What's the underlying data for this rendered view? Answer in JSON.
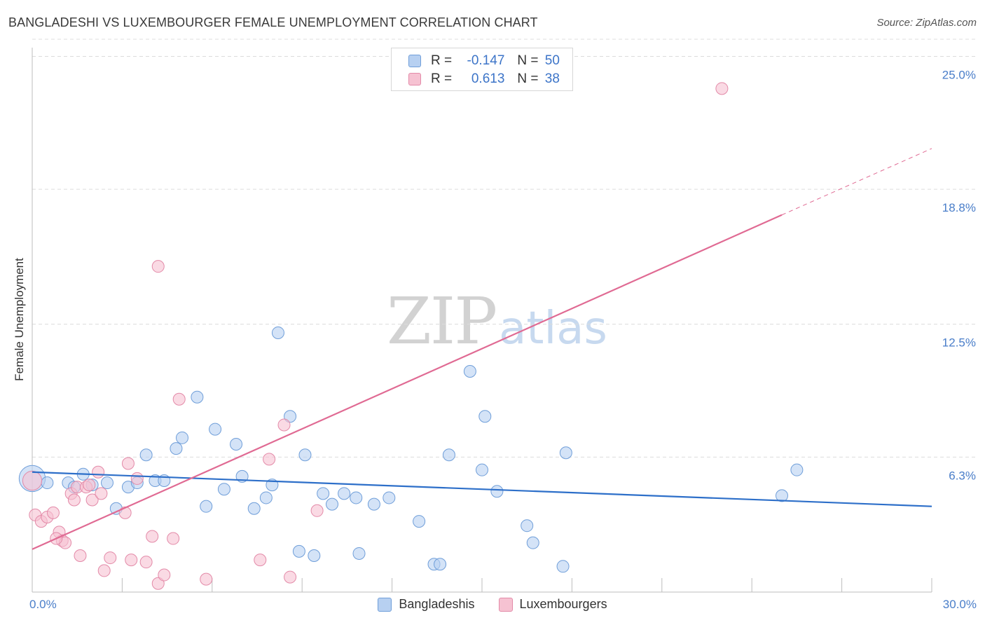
{
  "title": "BANGLADESHI VS LUXEMBOURGER FEMALE UNEMPLOYMENT CORRELATION CHART",
  "source": "Source: ZipAtlas.com",
  "watermark": {
    "zip": "ZIP",
    "atlas": "atlas"
  },
  "legend_top": [
    {
      "r_label": "R =",
      "r_value": "-0.147",
      "n_label": "N =",
      "n_value": "50"
    },
    {
      "r_label": "R =",
      "r_value": "0.613",
      "n_label": "N =",
      "n_value": "38"
    }
  ],
  "colors": {
    "blue_fill": "#b7d0f1",
    "blue_stroke": "#6f9ed9",
    "blue_line": "#2d6fc9",
    "pink_fill": "#f6c2d2",
    "pink_stroke": "#e38aa8",
    "pink_line": "#e06a93",
    "grid": "#dcdcdc",
    "axis_text": "#4a7ec9"
  },
  "chart_data": {
    "type": "scatter",
    "title": "BANGLADESHI VS LUXEMBOURGER FEMALE UNEMPLOYMENT CORRELATION CHART",
    "xlabel": "",
    "ylabel": "Female Unemployment",
    "xlim": [
      0,
      30
    ],
    "ylim": [
      0,
      25.8
    ],
    "x_tick_labels": [
      {
        "value": 0,
        "label": "0.0%"
      },
      {
        "value": 30,
        "label": "30.0%"
      }
    ],
    "y_tick_labels": [
      {
        "value": 6.3,
        "label": "6.3%"
      },
      {
        "value": 12.5,
        "label": "12.5%"
      },
      {
        "value": 18.8,
        "label": "18.8%"
      },
      {
        "value": 25.0,
        "label": "25.0%"
      }
    ],
    "series": [
      {
        "name": "Bangladeshis",
        "color": "#b7d0f1",
        "points": [
          [
            0.0,
            5.3,
            2.2
          ],
          [
            0.5,
            5.1,
            1
          ],
          [
            1.2,
            5.1,
            1
          ],
          [
            1.4,
            4.9,
            1
          ],
          [
            1.7,
            5.5,
            1
          ],
          [
            2.0,
            5.0,
            1
          ],
          [
            2.5,
            5.1,
            1
          ],
          [
            2.8,
            3.9,
            1
          ],
          [
            3.2,
            4.9,
            1
          ],
          [
            3.5,
            5.1,
            1
          ],
          [
            3.8,
            6.4,
            1
          ],
          [
            4.1,
            5.2,
            1
          ],
          [
            4.4,
            5.2,
            1
          ],
          [
            4.8,
            6.7,
            1
          ],
          [
            5.0,
            7.2,
            1
          ],
          [
            5.5,
            9.1,
            1
          ],
          [
            5.8,
            4.0,
            1
          ],
          [
            6.1,
            7.6,
            1
          ],
          [
            6.4,
            4.8,
            1
          ],
          [
            6.8,
            6.9,
            1
          ],
          [
            7.0,
            5.4,
            1
          ],
          [
            7.4,
            3.9,
            1
          ],
          [
            7.8,
            4.4,
            1
          ],
          [
            8.0,
            5.0,
            1
          ],
          [
            8.2,
            12.1,
            1
          ],
          [
            8.6,
            8.2,
            1
          ],
          [
            9.1,
            6.4,
            1
          ],
          [
            9.4,
            1.7,
            1
          ],
          [
            9.7,
            4.6,
            1
          ],
          [
            10.0,
            4.1,
            1
          ],
          [
            10.4,
            4.6,
            1
          ],
          [
            10.8,
            4.4,
            1
          ],
          [
            10.9,
            1.8,
            1
          ],
          [
            11.4,
            4.1,
            1
          ],
          [
            11.9,
            4.4,
            1
          ],
          [
            12.9,
            3.3,
            1
          ],
          [
            13.4,
            1.3,
            1
          ],
          [
            13.6,
            1.3,
            1
          ],
          [
            13.9,
            6.4,
            1
          ],
          [
            14.6,
            10.3,
            1
          ],
          [
            15.0,
            5.7,
            1
          ],
          [
            15.1,
            8.2,
            1
          ],
          [
            15.5,
            4.7,
            1
          ],
          [
            16.5,
            3.1,
            1
          ],
          [
            16.7,
            2.3,
            1
          ],
          [
            17.7,
            1.2,
            1
          ],
          [
            17.8,
            6.5,
            1
          ],
          [
            25.0,
            4.5,
            1
          ],
          [
            25.5,
            5.7,
            1
          ],
          [
            8.9,
            1.9,
            1
          ]
        ]
      },
      {
        "name": "Luxembourgers",
        "color": "#f6c2d2",
        "points": [
          [
            0.0,
            5.2,
            1.6
          ],
          [
            0.1,
            3.6,
            1
          ],
          [
            0.3,
            3.3,
            1
          ],
          [
            0.5,
            3.5,
            1
          ],
          [
            0.7,
            3.7,
            1
          ],
          [
            0.9,
            2.8,
            1
          ],
          [
            1.0,
            2.4,
            1
          ],
          [
            1.1,
            2.3,
            1
          ],
          [
            1.3,
            4.6,
            1
          ],
          [
            1.4,
            4.3,
            1
          ],
          [
            1.5,
            4.9,
            1
          ],
          [
            1.6,
            1.7,
            1
          ],
          [
            1.8,
            4.9,
            1
          ],
          [
            2.0,
            4.3,
            1
          ],
          [
            2.2,
            5.6,
            1
          ],
          [
            2.3,
            4.6,
            1
          ],
          [
            2.4,
            1.0,
            1
          ],
          [
            2.6,
            1.6,
            1
          ],
          [
            3.1,
            3.7,
            1
          ],
          [
            3.2,
            6.0,
            1
          ],
          [
            3.3,
            1.5,
            1
          ],
          [
            3.5,
            5.3,
            1
          ],
          [
            3.8,
            1.4,
            1
          ],
          [
            4.0,
            2.6,
            1
          ],
          [
            4.2,
            15.2,
            1
          ],
          [
            4.2,
            0.4,
            1
          ],
          [
            4.4,
            0.8,
            1
          ],
          [
            4.7,
            2.5,
            1
          ],
          [
            4.9,
            9.0,
            1
          ],
          [
            5.8,
            0.6,
            1
          ],
          [
            7.6,
            1.5,
            1
          ],
          [
            7.9,
            6.2,
            1
          ],
          [
            8.4,
            7.8,
            1
          ],
          [
            8.6,
            0.7,
            1
          ],
          [
            9.5,
            3.8,
            1
          ],
          [
            23.0,
            23.5,
            1
          ],
          [
            1.9,
            5.0,
            1
          ],
          [
            0.8,
            2.5,
            1
          ]
        ]
      }
    ],
    "trend_lines": [
      {
        "series": "Bangladeshis",
        "x": [
          0,
          30
        ],
        "y": [
          5.6,
          4.0
        ],
        "style": "solid"
      },
      {
        "series": "Luxembourgers",
        "x": [
          0,
          25
        ],
        "y": [
          2.0,
          17.6
        ],
        "style": "solid"
      },
      {
        "series": "Luxembourgers",
        "x": [
          25,
          30
        ],
        "y": [
          17.6,
          20.7
        ],
        "style": "dashed"
      }
    ],
    "grid": true,
    "legend": [
      "Bangladeshis",
      "Luxembourgers"
    ],
    "legend_position": "bottom-center"
  }
}
